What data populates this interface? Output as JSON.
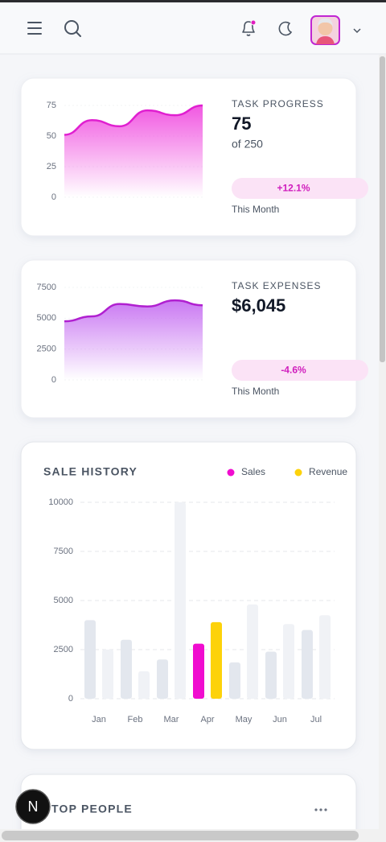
{
  "cards": [
    {
      "title": "TASK PROGRESS",
      "value": "75",
      "subvalue": "of 250",
      "change": "+12.1%",
      "period": "This Month",
      "chart_data": {
        "type": "area",
        "values": [
          51,
          63,
          58,
          71,
          67,
          75
        ],
        "color": "#e01fd0",
        "fill": "#f04fe0",
        "ylim": [
          0,
          80
        ],
        "yticks": [
          0,
          25,
          50,
          75
        ]
      }
    },
    {
      "title": "TASK EXPENSES",
      "value": "$6,045",
      "change": "-4.6%",
      "period": "This Month",
      "chart_data": {
        "type": "area",
        "values": [
          4750,
          5150,
          6150,
          5950,
          6450,
          6050
        ],
        "color": "#b020d0",
        "fill": "#c060f0",
        "ylim": [
          0,
          8000
        ],
        "yticks": [
          0,
          2500,
          5000,
          7500
        ]
      }
    }
  ],
  "sales_history": {
    "chart_data": {
      "type": "bar",
      "title": "SALE HISTORY",
      "categories": [
        "Jan",
        "Feb",
        "Mar",
        "Apr",
        "May",
        "Jun",
        "Jul"
      ],
      "series": [
        {
          "name": "Sales",
          "color": "#f00ccf",
          "values": [
            4000,
            3000,
            2000,
            2800,
            1850,
            2400,
            3500
          ]
        },
        {
          "name": "Revenue",
          "color": "#fdd20a",
          "values": [
            2500,
            1400,
            10000,
            3900,
            4800,
            3800,
            4250
          ]
        }
      ],
      "inactive_colors": [
        "#e3e7ee",
        "#f0f2f6"
      ],
      "highlighted_category_index": 3,
      "ylim": [
        0,
        10000
      ],
      "yticks": [
        0,
        2500,
        5000,
        7500,
        10000
      ],
      "grid": true
    }
  },
  "top_people": {
    "title": "TOP PEOPLE"
  },
  "dev_badge": "N"
}
